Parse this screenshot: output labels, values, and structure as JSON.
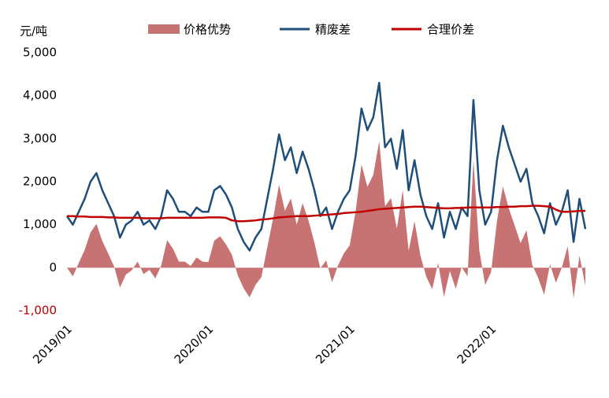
{
  "chart_data": {
    "type": "line",
    "y_label": "元/吨",
    "categories": [
      "2019/01",
      null,
      null,
      null,
      null,
      null,
      null,
      null,
      null,
      null,
      null,
      null,
      null,
      null,
      null,
      null,
      null,
      null,
      null,
      null,
      null,
      null,
      null,
      null,
      "2020/01",
      null,
      null,
      null,
      null,
      null,
      null,
      null,
      null,
      null,
      null,
      null,
      null,
      null,
      null,
      null,
      null,
      null,
      null,
      null,
      null,
      null,
      null,
      null,
      "2021/01",
      null,
      null,
      null,
      null,
      null,
      null,
      null,
      null,
      null,
      null,
      null,
      null,
      null,
      null,
      null,
      null,
      null,
      null,
      null,
      null,
      null,
      null,
      null,
      "2022/01",
      null,
      null,
      null,
      null,
      null,
      null,
      null,
      null,
      null,
      null,
      null,
      null,
      null,
      null,
      null,
      null
    ],
    "series": [
      {
        "name": "价格优势",
        "kind": "area",
        "color": "#c87373",
        "values": [
          0,
          -200,
          110,
          410,
          820,
          1020,
          620,
          330,
          30,
          -460,
          -160,
          -60,
          140,
          -150,
          -50,
          -250,
          50,
          640,
          440,
          140,
          140,
          40,
          240,
          140,
          130,
          630,
          730,
          540,
          300,
          -180,
          -480,
          -690,
          -400,
          -220,
          470,
          1150,
          1930,
          1320,
          1610,
          1000,
          1500,
          1100,
          590,
          -20,
          170,
          -340,
          50,
          330,
          520,
          1310,
          2400,
          1880,
          2160,
          2940,
          1430,
          1620,
          910,
          1800,
          390,
          1080,
          280,
          -210,
          -500,
          110,
          -680,
          -80,
          -490,
          10,
          -200,
          2500,
          400,
          -400,
          -100,
          1090,
          1890,
          1380,
          980,
          570,
          870,
          60,
          -240,
          -630,
          80,
          -350,
          0,
          500,
          -710,
          280,
          -420
        ]
      },
      {
        "name": "精废差",
        "kind": "line",
        "color": "#1f4e79",
        "values": [
          1200,
          1000,
          1300,
          1600,
          2000,
          2200,
          1800,
          1500,
          1200,
          700,
          1000,
          1100,
          1300,
          1000,
          1100,
          900,
          1200,
          1800,
          1600,
          1300,
          1300,
          1200,
          1400,
          1300,
          1300,
          1800,
          1900,
          1700,
          1400,
          900,
          600,
          400,
          700,
          900,
          1600,
          2300,
          3100,
          2500,
          2800,
          2200,
          2700,
          2300,
          1800,
          1200,
          1400,
          900,
          1300,
          1600,
          1800,
          2600,
          3700,
          3200,
          3500,
          4300,
          2800,
          3000,
          2300,
          3200,
          1800,
          2500,
          1700,
          1200,
          900,
          1500,
          700,
          1300,
          900,
          1400,
          1200,
          3900,
          1800,
          1000,
          1300,
          2500,
          3300,
          2800,
          2400,
          2000,
          2300,
          1500,
          1200,
          800,
          1500,
          1000,
          1300,
          1800,
          600,
          1600,
          900
        ]
      },
      {
        "name": "合理价差",
        "kind": "line",
        "color": "#c00000",
        "values": [
          1200,
          1200,
          1190,
          1190,
          1180,
          1180,
          1180,
          1170,
          1170,
          1160,
          1160,
          1160,
          1160,
          1150,
          1150,
          1150,
          1150,
          1160,
          1160,
          1160,
          1160,
          1160,
          1160,
          1160,
          1170,
          1170,
          1170,
          1160,
          1100,
          1080,
          1080,
          1090,
          1100,
          1120,
          1130,
          1150,
          1170,
          1180,
          1190,
          1200,
          1200,
          1200,
          1210,
          1220,
          1230,
          1240,
          1250,
          1270,
          1280,
          1290,
          1300,
          1320,
          1340,
          1360,
          1370,
          1380,
          1390,
          1400,
          1410,
          1420,
          1420,
          1410,
          1400,
          1390,
          1380,
          1380,
          1390,
          1390,
          1400,
          1400,
          1400,
          1400,
          1400,
          1410,
          1410,
          1420,
          1420,
          1430,
          1430,
          1440,
          1440,
          1430,
          1420,
          1350,
          1300,
          1300,
          1310,
          1320,
          1320
        ]
      }
    ],
    "ylim": [
      -1000,
      5000
    ],
    "yticks": [
      {
        "value": -1000,
        "label": "-1,000",
        "color": "#c00000"
      },
      0,
      {
        "value": 1000,
        "label": "1,000"
      },
      {
        "value": 2000,
        "label": "2,000"
      },
      {
        "value": 3000,
        "label": "3,000"
      },
      {
        "value": 4000,
        "label": "4,000"
      },
      {
        "value": 5000,
        "label": "5,000"
      }
    ],
    "grid": false,
    "legend": "top"
  }
}
